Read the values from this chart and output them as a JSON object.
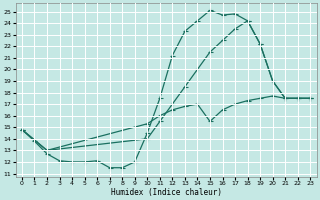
{
  "xlabel": "Humidex (Indice chaleur)",
  "xlim": [
    -0.5,
    23.5
  ],
  "ylim": [
    10.7,
    25.7
  ],
  "yticks": [
    11,
    12,
    13,
    14,
    15,
    16,
    17,
    18,
    19,
    20,
    21,
    22,
    23,
    24,
    25
  ],
  "xticks": [
    0,
    1,
    2,
    3,
    4,
    5,
    6,
    7,
    8,
    9,
    10,
    11,
    12,
    13,
    14,
    15,
    16,
    17,
    18,
    19,
    20,
    21,
    22,
    23
  ],
  "bg_color": "#c5e8e4",
  "line_color": "#1a7060",
  "grid_color": "#ffffff",
  "line1_x": [
    0,
    1,
    2,
    3,
    4,
    5,
    6,
    7,
    8,
    9,
    10,
    11,
    12,
    13,
    14,
    15,
    16,
    17,
    18,
    19,
    20,
    21,
    22,
    23
  ],
  "line1_y": [
    14.8,
    13.8,
    12.7,
    12.1,
    12.0,
    12.0,
    12.1,
    11.5,
    11.5,
    12.0,
    14.5,
    17.5,
    21.2,
    23.3,
    24.2,
    25.1,
    24.7,
    24.8,
    24.2,
    22.2,
    19.0,
    17.5,
    17.5,
    17.5
  ],
  "line2_x": [
    0,
    2,
    10,
    11,
    12,
    13,
    14,
    15,
    16,
    17,
    18,
    19,
    20,
    21,
    22,
    23
  ],
  "line2_y": [
    14.8,
    13.0,
    14.0,
    15.5,
    17.0,
    18.5,
    20.0,
    21.5,
    22.5,
    23.5,
    24.2,
    22.2,
    19.0,
    17.5,
    17.5,
    17.5
  ],
  "line3_x": [
    0,
    2,
    10,
    11,
    12,
    13,
    14,
    15,
    16,
    17,
    18,
    19,
    20,
    21,
    22,
    23
  ],
  "line3_y": [
    14.8,
    13.0,
    15.3,
    16.0,
    16.5,
    16.8,
    17.0,
    15.5,
    16.5,
    17.0,
    17.3,
    17.5,
    17.7,
    17.5,
    17.5,
    17.5
  ]
}
